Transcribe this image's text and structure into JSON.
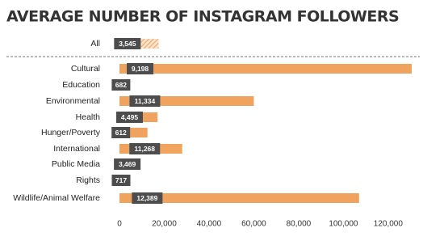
{
  "chart_data": {
    "type": "bar",
    "title": "AVERAGE NUMBER OF INSTAGRAM FOLLOWERS",
    "categories": [
      "All",
      "Cultural",
      "Education",
      "Environmental",
      "Health",
      "Hunger/Poverty",
      "International",
      "Public Media",
      "Rights",
      "Wildlife/Animal Welfare"
    ],
    "series": [
      {
        "color": "#f0a35e",
        "values": [
          17500,
          130500,
          682,
          60000,
          17000,
          12500,
          28000,
          3469,
          717,
          107000
        ]
      },
      {
        "color": "#4d4d4d",
        "values": [
          3545,
          9198,
          682,
          11334,
          4495,
          612,
          11268,
          3469,
          717,
          12389
        ],
        "value_labels": [
          "3,545",
          "9,198",
          "682",
          "11,334",
          "4,495",
          "612",
          "11,268",
          "3,469",
          "717",
          "12,389"
        ]
      }
    ],
    "xlim": [
      0,
      130500
    ],
    "xticks": [
      0,
      {
        "value": 20000,
        "label": "20,000"
      },
      {
        "value": 40000,
        "label": "40,000"
      },
      {
        "value": 60000,
        "label": "60,000"
      },
      {
        "value": 80000,
        "label": "80,000"
      },
      {
        "value": 100000,
        "label": "100,000"
      },
      {
        "value": 120000,
        "label": "120,000"
      }
    ]
  }
}
